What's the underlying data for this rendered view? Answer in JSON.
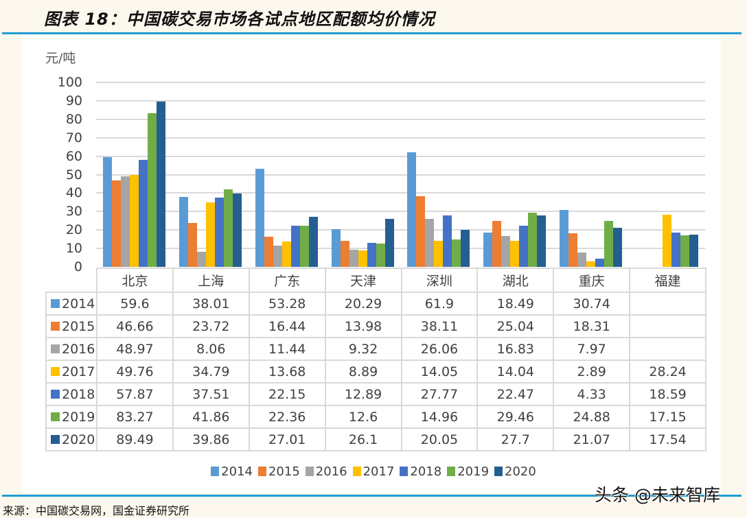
{
  "header": {
    "title": "图表 18：中国碳交易市场各试点地区配额均价情况",
    "rule_color": "#1f9bd7"
  },
  "footer": {
    "source": "来源：中国碳交易网，国金证券研究所",
    "watermark": "头条 @未来智库"
  },
  "chart_data": {
    "type": "bar",
    "title": "中国碳交易市场各试点地区配额均价情况",
    "ylabel": "元/吨",
    "xlabel": "",
    "ylim": [
      0,
      100
    ],
    "yticks": [
      "100",
      "90",
      "80",
      "70",
      "60",
      "50",
      "40",
      "30",
      "20",
      "10",
      "0"
    ],
    "grid": true,
    "legend_position": "bottom",
    "categories": [
      "北京",
      "上海",
      "广东",
      "天津",
      "深圳",
      "湖北",
      "重庆",
      "福建"
    ],
    "series": [
      {
        "name": "2014",
        "color": "#5B9BD5",
        "values": [
          59.6,
          38.01,
          53.28,
          20.29,
          61.9,
          18.49,
          30.74,
          null
        ],
        "labels": [
          "59.6",
          "38.01",
          "53.28",
          "20.29",
          "61.9",
          "18.49",
          "30.74",
          ""
        ]
      },
      {
        "name": "2015",
        "color": "#ED7D31",
        "values": [
          46.66,
          23.72,
          16.44,
          13.98,
          38.11,
          25.04,
          18.31,
          null
        ],
        "labels": [
          "46.66",
          "23.72",
          "16.44",
          "13.98",
          "38.11",
          "25.04",
          "18.31",
          ""
        ]
      },
      {
        "name": "2016",
        "color": "#A5A5A5",
        "values": [
          48.97,
          8.06,
          11.44,
          9.32,
          26.06,
          16.83,
          7.97,
          null
        ],
        "labels": [
          "48.97",
          "8.06",
          "11.44",
          "9.32",
          "26.06",
          "16.83",
          "7.97",
          ""
        ]
      },
      {
        "name": "2017",
        "color": "#FFC000",
        "values": [
          49.76,
          34.79,
          13.68,
          8.89,
          14.05,
          14.04,
          2.89,
          28.24
        ],
        "labels": [
          "49.76",
          "34.79",
          "13.68",
          "8.89",
          "14.05",
          "14.04",
          "2.89",
          "28.24"
        ]
      },
      {
        "name": "2018",
        "color": "#4472C4",
        "values": [
          57.87,
          37.51,
          22.15,
          12.89,
          27.77,
          22.47,
          4.33,
          18.59
        ],
        "labels": [
          "57.87",
          "37.51",
          "22.15",
          "12.89",
          "27.77",
          "22.47",
          "4.33",
          "18.59"
        ]
      },
      {
        "name": "2019",
        "color": "#70AD47",
        "values": [
          83.27,
          41.86,
          22.36,
          12.6,
          14.96,
          29.46,
          24.88,
          17.15
        ],
        "labels": [
          "83.27",
          "41.86",
          "22.36",
          "12.6",
          "14.96",
          "29.46",
          "24.88",
          "17.15"
        ]
      },
      {
        "name": "2020",
        "color": "#255E91",
        "values": [
          89.49,
          39.86,
          27.01,
          26.1,
          20.05,
          27.7,
          21.07,
          17.54
        ],
        "labels": [
          "89.49",
          "39.86",
          "27.01",
          "26.1",
          "20.05",
          "27.7",
          "21.07",
          "17.54"
        ]
      }
    ]
  }
}
